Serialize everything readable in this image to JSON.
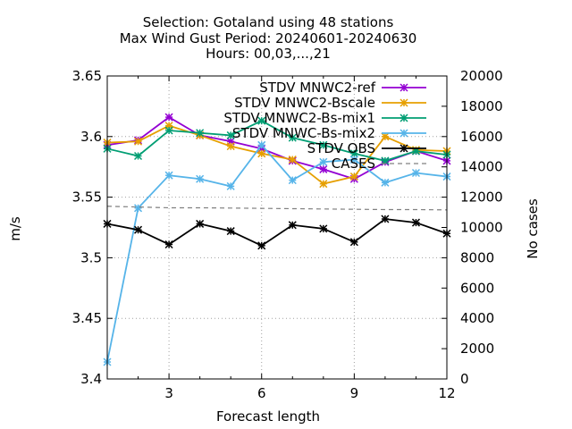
{
  "chart_data": {
    "type": "line",
    "title_lines": [
      "Selection: Gotaland using    48 stations",
      "Max Wind Gust   Period: 20240601-20240630",
      "Hours: 00,03,...,21"
    ],
    "xlabel": "Forecast length",
    "ylabel": "m/s",
    "y2label": "No cases",
    "xlim": [
      1,
      12
    ],
    "ylim": [
      3.4,
      3.65
    ],
    "y2lim": [
      0,
      20000
    ],
    "xticks": [
      3,
      6,
      9,
      12
    ],
    "yticks": [
      "3.4",
      "3.45",
      "3.5",
      "3.55",
      "3.6",
      "3.65"
    ],
    "y2ticks": [
      "0",
      "2000",
      "4000",
      "6000",
      "8000",
      "10000",
      "12000",
      "14000",
      "16000",
      "18000",
      "20000"
    ],
    "grid": true,
    "legend_position": "top-right",
    "x": [
      1,
      2,
      3,
      4,
      5,
      6,
      7,
      8,
      9,
      10,
      11,
      12
    ],
    "series": [
      {
        "name": "STDV MNWC2-ref",
        "color": "#9400d3",
        "axis": "y",
        "values": [
          3.593,
          3.597,
          3.616,
          3.601,
          3.596,
          3.59,
          3.58,
          3.573,
          3.565,
          3.579,
          3.588,
          3.58
        ]
      },
      {
        "name": "STDV MNWC2-Bscale",
        "color": "#e69f00",
        "axis": "y",
        "values": [
          3.595,
          3.596,
          3.609,
          3.601,
          3.592,
          3.586,
          3.581,
          3.561,
          3.567,
          3.6,
          3.589,
          3.588
        ]
      },
      {
        "name": "STDV MNWC2-Bs-mix1",
        "color": "#009e73",
        "axis": "y",
        "values": [
          3.59,
          3.584,
          3.605,
          3.603,
          3.601,
          3.613,
          3.599,
          3.593,
          3.586,
          3.58,
          3.588,
          3.585
        ]
      },
      {
        "name": "STDV MNWC-Bs-mix2",
        "color": "#56b4e9",
        "axis": "y",
        "values": [
          3.414,
          3.541,
          3.568,
          3.565,
          3.559,
          3.593,
          3.564,
          3.579,
          3.581,
          3.562,
          3.57,
          3.567
        ]
      },
      {
        "name": "STDV OBS",
        "color": "#000000",
        "axis": "y",
        "values": [
          3.528,
          3.523,
          3.511,
          3.528,
          3.522,
          3.51,
          3.527,
          3.524,
          3.513,
          3.532,
          3.529,
          3.52
        ]
      },
      {
        "name": "CASES",
        "color": "#808080",
        "axis": "y2",
        "dashed": true,
        "values": [
          11400,
          11350,
          11300,
          11300,
          11280,
          11260,
          11240,
          11220,
          11200,
          11180,
          11180,
          11160
        ]
      }
    ]
  }
}
